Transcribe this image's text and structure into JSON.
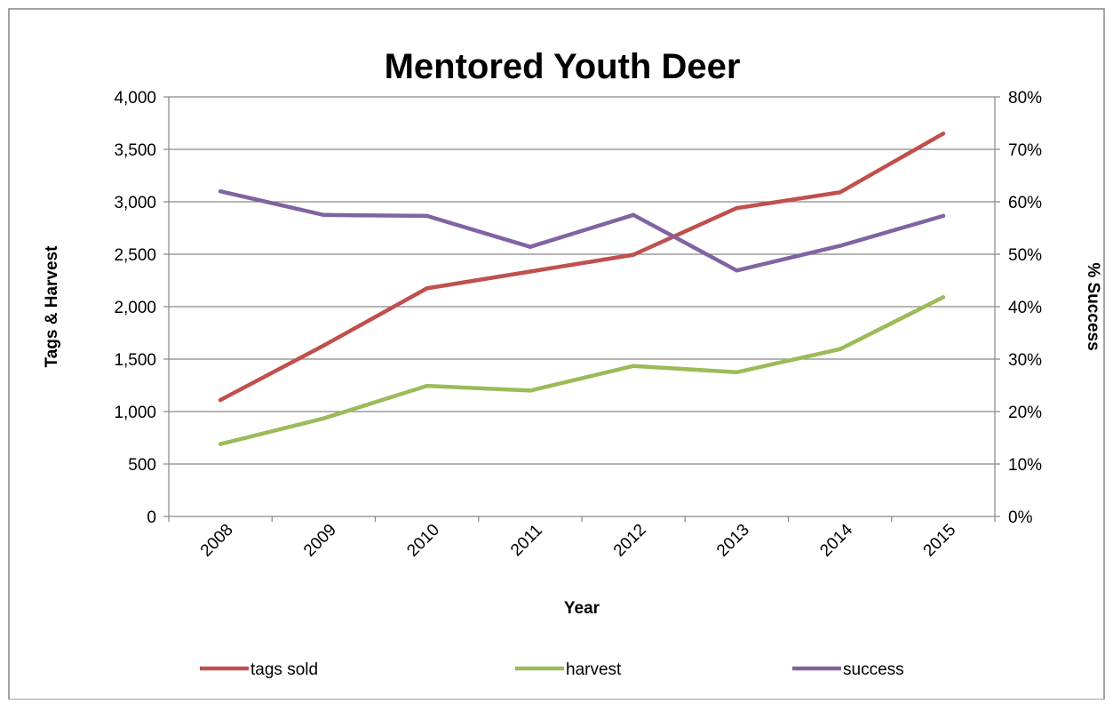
{
  "chart_data": {
    "type": "line",
    "title": "Mentored Youth Deer",
    "xlabel": "Year",
    "ylabel": "Tags & Harvest",
    "y2label": "% Success",
    "categories": [
      "2008",
      "2009",
      "2010",
      "2011",
      "2012",
      "2013",
      "2014",
      "2015"
    ],
    "ylim": [
      0,
      4000
    ],
    "yticks": [
      "0",
      "500",
      "1,000",
      "1,500",
      "2,000",
      "2,500",
      "3,000",
      "3,500",
      "4,000"
    ],
    "y2lim": [
      0,
      0.8
    ],
    "y2ticks": [
      "0%",
      "10%",
      "20%",
      "30%",
      "40%",
      "50%",
      "60%",
      "70%",
      "80%"
    ],
    "grid": true,
    "legend_position": "bottom",
    "series": [
      {
        "name": "tags sold",
        "axis": "left",
        "color": "#C0504D",
        "values": [
          1110,
          1630,
          2175,
          2335,
          2495,
          2940,
          3090,
          3650
        ]
      },
      {
        "name": "harvest",
        "axis": "left",
        "color": "#9BBB59",
        "values": [
          690,
          935,
          1245,
          1200,
          1435,
          1375,
          1595,
          2090
        ]
      },
      {
        "name": "success",
        "axis": "right",
        "color": "#8064A2",
        "values": [
          0.62,
          0.575,
          0.573,
          0.514,
          0.575,
          0.469,
          0.516,
          0.573
        ]
      }
    ]
  }
}
